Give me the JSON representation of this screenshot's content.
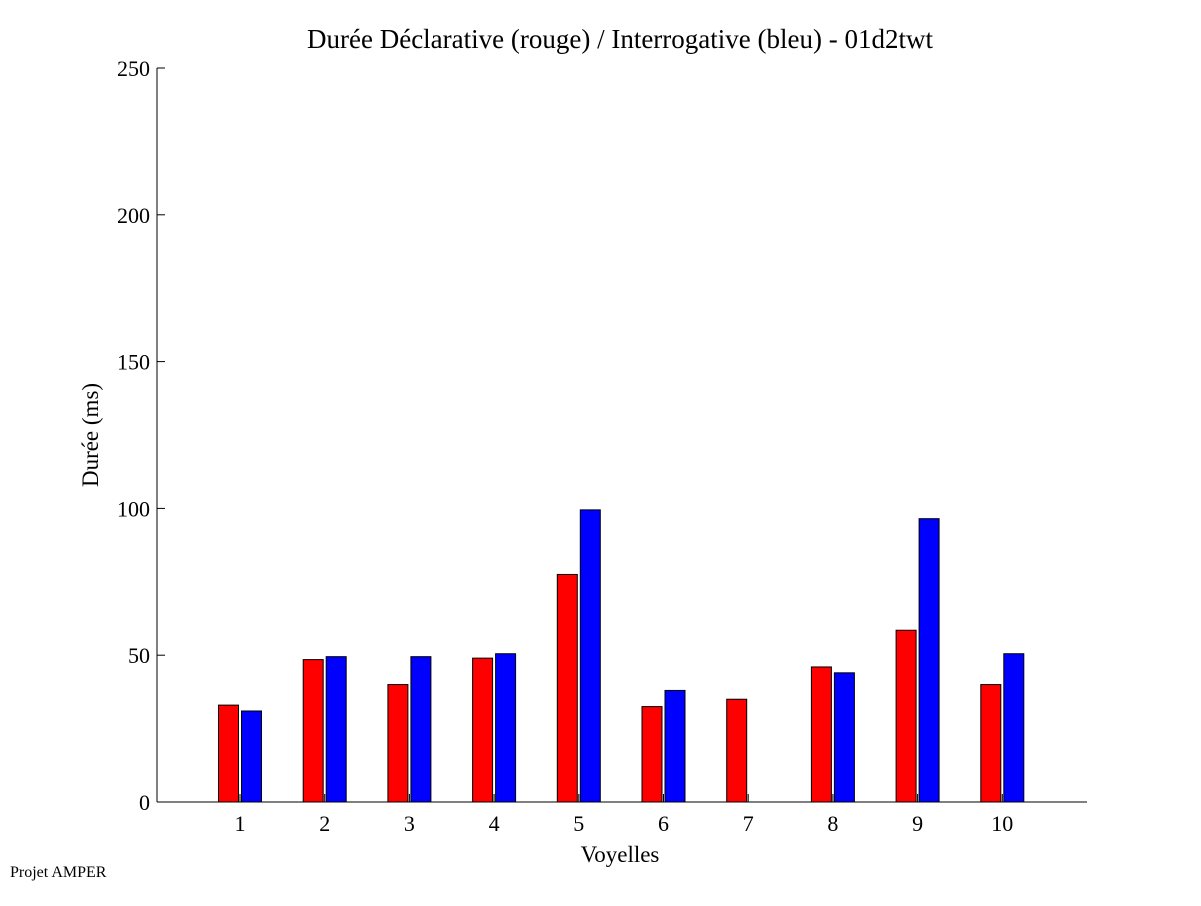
{
  "chart_data": {
    "type": "bar",
    "title": "Durée Déclarative (rouge) / Interrogative (bleu) - 01d2twt",
    "xlabel": "Voyelles",
    "ylabel": "Durée (ms)",
    "categories": [
      "1",
      "2",
      "3",
      "4",
      "5",
      "6",
      "7",
      "8",
      "9",
      "10"
    ],
    "series": [
      {
        "color": "#ff0000",
        "values": [
          33,
          48.5,
          40,
          49,
          77.5,
          32.5,
          35,
          46,
          58.5,
          40
        ]
      },
      {
        "color": "#0000ff",
        "values": [
          31,
          49.5,
          49.5,
          50.5,
          99.5,
          38,
          0,
          44,
          96.5,
          50.5
        ]
      }
    ],
    "ylim": [
      0,
      250
    ],
    "yticks": [
      0,
      50,
      100,
      150,
      200,
      250
    ],
    "grid": false,
    "legend": "none"
  },
  "footer": {
    "note": "Projet AMPER"
  }
}
